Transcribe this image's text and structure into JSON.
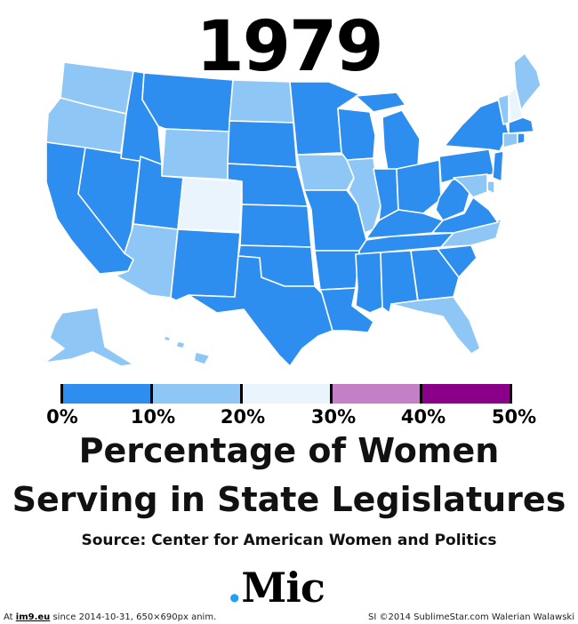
{
  "year": "1979",
  "colors": {
    "bin_0_10": "#2d8ef0",
    "bin_10_20": "#8ec7f6",
    "bin_20_30": "#eaf4fd",
    "bin_30_40": "#c57fc6",
    "bin_40_50": "#8a0088"
  },
  "legend": {
    "segments": [
      {
        "range": "0-10",
        "color": "#2d8ef0"
      },
      {
        "range": "10-20",
        "color": "#8ec7f6"
      },
      {
        "range": "20-30",
        "color": "#eaf4fd"
      },
      {
        "range": "30-40",
        "color": "#c57fc6"
      },
      {
        "range": "40-50",
        "color": "#8a0088"
      }
    ],
    "labels": [
      "0%",
      "10%",
      "20%",
      "30%",
      "40%",
      "50%"
    ]
  },
  "title_line1": "Percentage of Women",
  "title_line2": "Serving in State Legislatures",
  "source": "Source: Center for American Women and Politics",
  "logo": {
    "dot": ".",
    "text": "Mic"
  },
  "footer": {
    "left_prefix": "At ",
    "left_link": "im9.eu",
    "left_suffix": " since 2014-10-31, 650×690px anim.",
    "right": "SI ©2014 SublimeStar.com Walerian Walawski"
  },
  "states": {
    "WA": "10-20",
    "OR": "10-20",
    "CA": "0-10",
    "NV": "0-10",
    "ID": "0-10",
    "MT": "0-10",
    "WY": "10-20",
    "UT": "0-10",
    "AZ": "10-20",
    "CO": "20-30",
    "NM": "0-10",
    "ND": "10-20",
    "SD": "0-10",
    "NE": "0-10",
    "KS": "0-10",
    "OK": "0-10",
    "TX": "0-10",
    "MN": "0-10",
    "IA": "10-20",
    "MO": "0-10",
    "AR": "0-10",
    "LA": "0-10",
    "WI": "0-10",
    "IL": "10-20",
    "MI": "0-10",
    "IN": "0-10",
    "OH": "0-10",
    "KY": "0-10",
    "TN": "0-10",
    "MS": "0-10",
    "AL": "0-10",
    "GA": "0-10",
    "FL": "10-20",
    "SC": "0-10",
    "NC": "10-20",
    "VA": "0-10",
    "WV": "0-10",
    "PA": "0-10",
    "NY": "0-10",
    "VT": "10-20",
    "NH": "20-30",
    "ME": "10-20",
    "MA": "0-10",
    "CT": "10-20",
    "RI": "0-10",
    "NJ": "0-10",
    "DE": "10-20",
    "MD": "10-20",
    "AK": "10-20",
    "HI": "10-20"
  }
}
